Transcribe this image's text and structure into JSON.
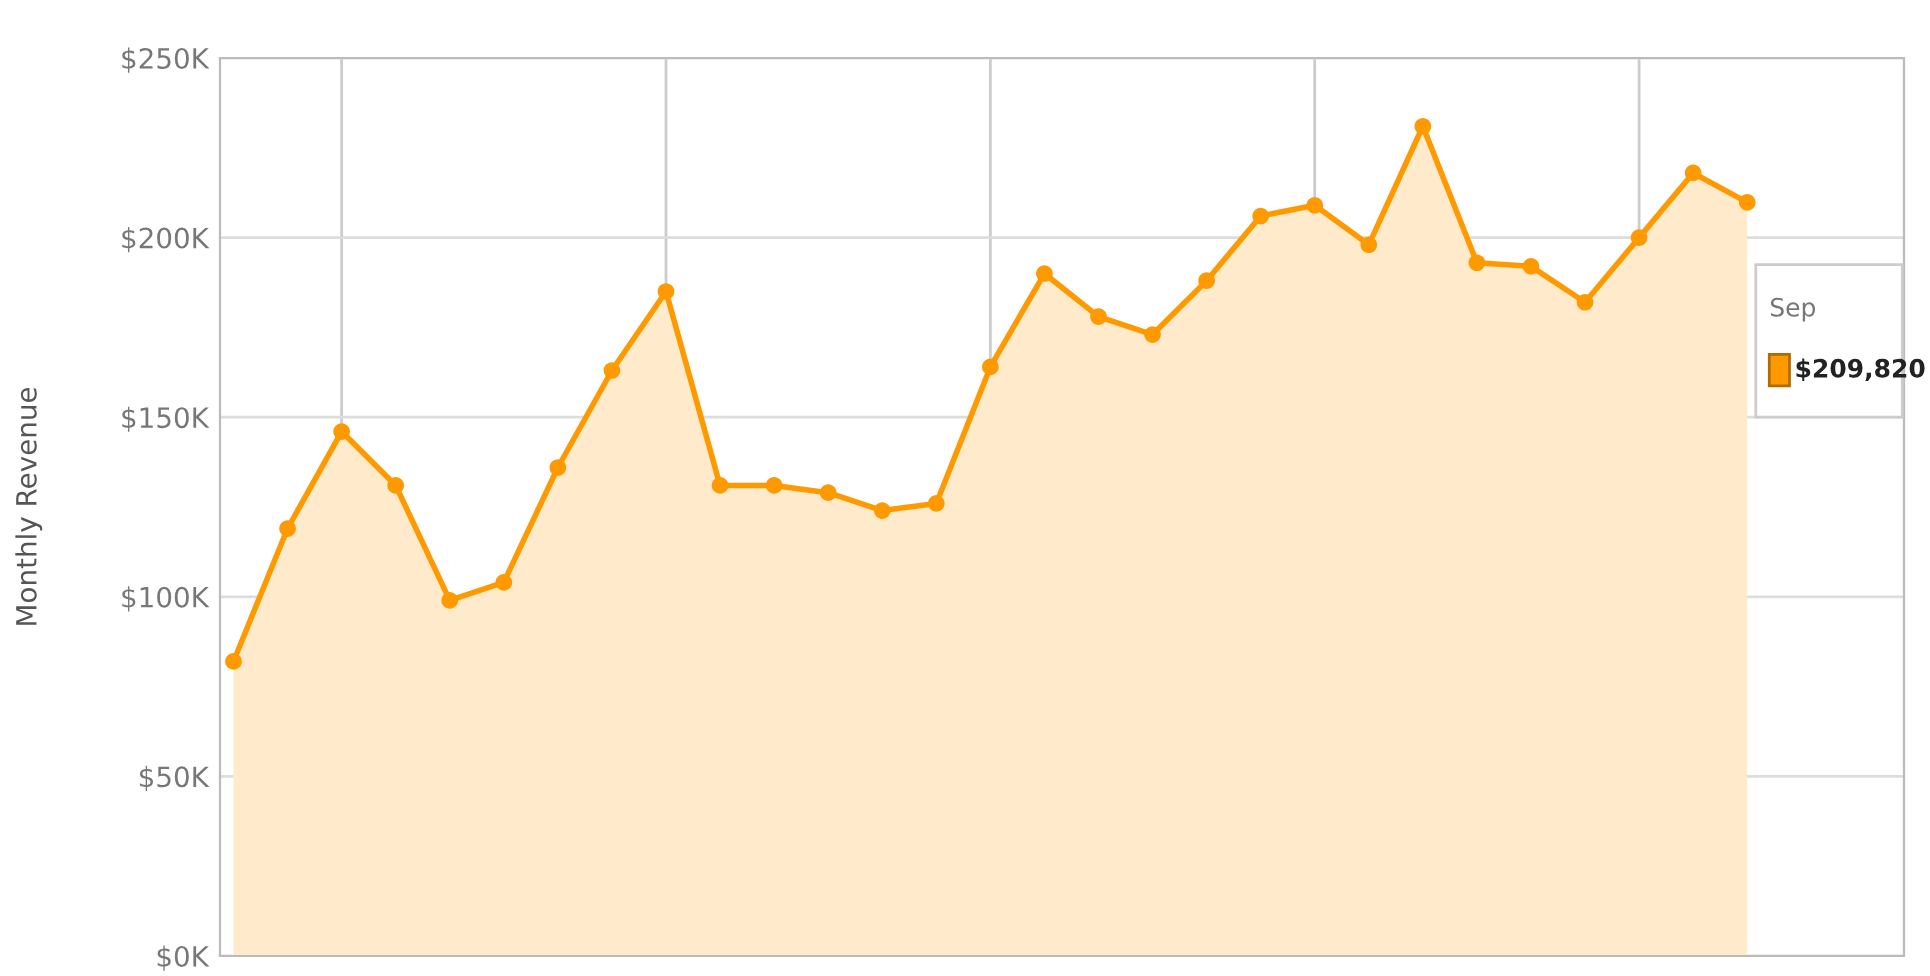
{
  "chart_data": {
    "type": "area",
    "ylabel": "Monthly Revenue",
    "categories": [
      null,
      null,
      null,
      null,
      null,
      null,
      null,
      null,
      null,
      null,
      null,
      null,
      null,
      null,
      null,
      null,
      null,
      null,
      null,
      null,
      null,
      null,
      null,
      null,
      null,
      null,
      null,
      null,
      null
    ],
    "series": [
      {
        "color": "#ff9900",
        "values": [
          82,
          119,
          146,
          131,
          99,
          104,
          136,
          163,
          185,
          131,
          131,
          129,
          124,
          126,
          164,
          190,
          178,
          173,
          188,
          206,
          209,
          198,
          231,
          193,
          192,
          182,
          200,
          218,
          209.82
        ]
      }
    ],
    "ylim": [
      0,
      250
    ],
    "yticks": [
      {
        "value": 0,
        "label": "$0K"
      },
      {
        "value": 50,
        "label": "$50K"
      },
      {
        "value": 100,
        "label": "$100K"
      },
      {
        "value": 150,
        "label": "$150K"
      },
      {
        "value": 200,
        "label": "$200K"
      },
      {
        "value": 250,
        "label": "$250K"
      }
    ],
    "grid": true,
    "marker": "circle",
    "line_style": "solid",
    "annotations": [
      "Sep",
      "$209,820"
    ]
  }
}
